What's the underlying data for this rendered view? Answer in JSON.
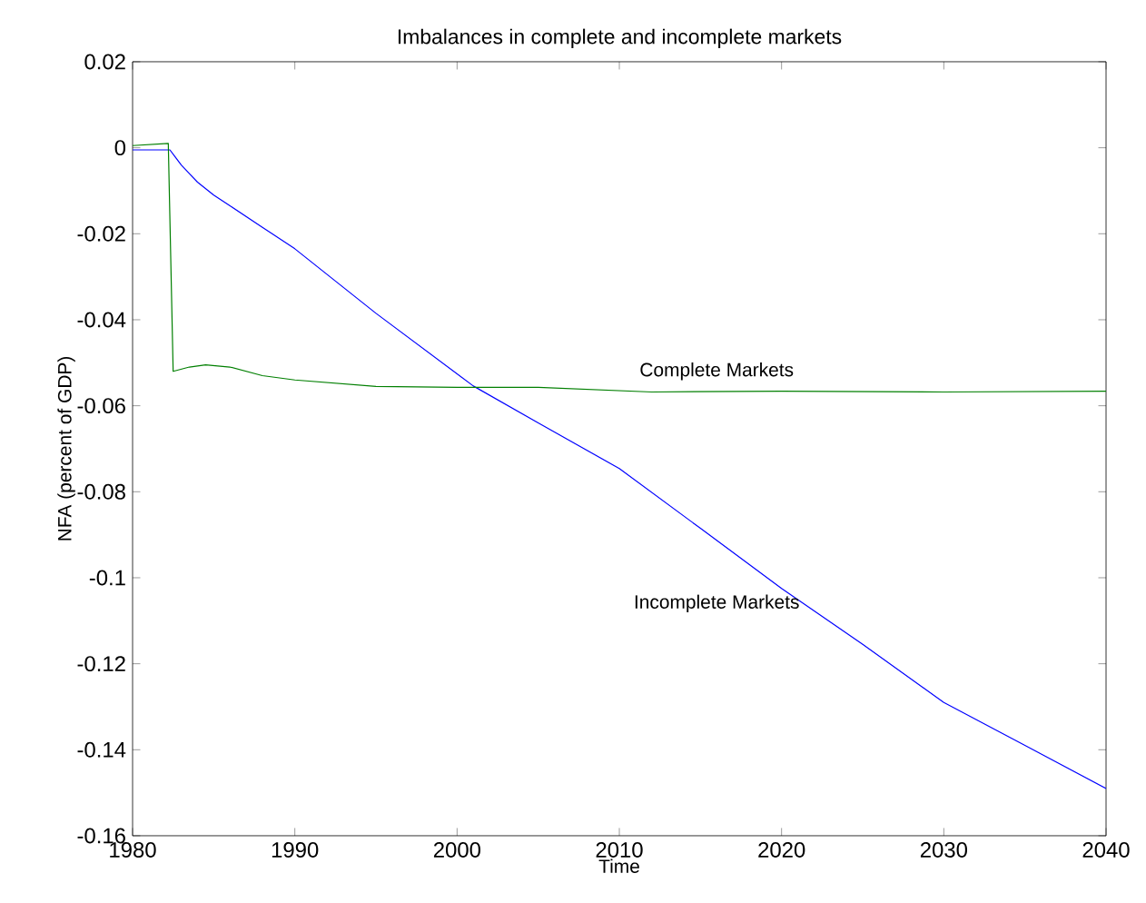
{
  "chart_data": {
    "type": "line",
    "title": "Imbalances in complete and incomplete markets",
    "xlabel": "Time",
    "ylabel": "NFA (percent of GDP)",
    "xlim": [
      1980,
      2040
    ],
    "xticks": [
      1980,
      1990,
      2000,
      2010,
      2020,
      2030,
      2040
    ],
    "ylim": [
      -0.16,
      0.02
    ],
    "yticks": [
      -0.16,
      -0.14,
      -0.12,
      -0.1,
      -0.08,
      -0.06,
      -0.04,
      -0.02,
      0,
      0.02
    ],
    "grid": false,
    "legend": false,
    "series": [
      {
        "name": "Incomplete Markets",
        "color": "#0000ff",
        "x": [
          1980,
          1982.3,
          1982.6,
          1983,
          1983.5,
          1984,
          1985,
          1986,
          1988,
          1990,
          1995,
          2001,
          2005,
          2010,
          2015,
          2020,
          2025,
          2030,
          2035,
          2040
        ],
        "values": [
          -0.0005,
          -0.0005,
          -0.002,
          -0.004,
          -0.006,
          -0.008,
          -0.011,
          -0.0135,
          -0.0185,
          -0.0235,
          -0.0385,
          -0.0554,
          -0.064,
          -0.0746,
          -0.0885,
          -0.1025,
          -0.1155,
          -0.129,
          -0.139,
          -0.149
        ]
      },
      {
        "name": "Complete Markets",
        "color": "#007f00",
        "x": [
          1980,
          1982.2,
          1982.5,
          1983.5,
          1984.5,
          1986,
          1988,
          1990,
          1995,
          2000,
          2005,
          2012,
          2020,
          2030,
          2040
        ],
        "values": [
          0.0005,
          0.001,
          -0.052,
          -0.051,
          -0.0505,
          -0.051,
          -0.053,
          -0.054,
          -0.0555,
          -0.0557,
          -0.0557,
          -0.0568,
          -0.0566,
          -0.0568,
          -0.0566
        ]
      }
    ]
  }
}
